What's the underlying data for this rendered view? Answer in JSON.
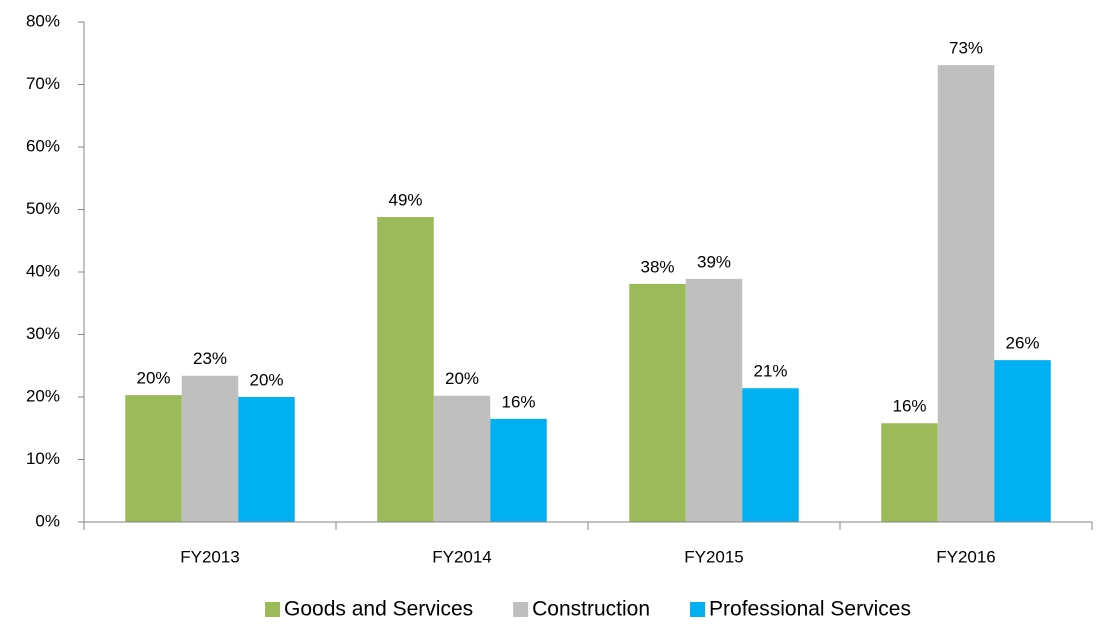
{
  "chart_data": {
    "type": "bar",
    "categories": [
      "FY2013",
      "FY2014",
      "FY2015",
      "FY2016"
    ],
    "series": [
      {
        "name": "Goods and Services",
        "color": "#9bbb59",
        "values": [
          20.3,
          48.8,
          38.1,
          15.8
        ],
        "value_labels": [
          "20%",
          "49%",
          "38%",
          "16%"
        ]
      },
      {
        "name": "Construction",
        "color": "#bfbfbf",
        "values": [
          23.4,
          20.2,
          38.9,
          73.1
        ],
        "value_labels": [
          "23%",
          "20%",
          "39%",
          "73%"
        ]
      },
      {
        "name": "Professional Services",
        "color": "#00b0f0",
        "values": [
          20.0,
          16.5,
          21.4,
          25.9
        ],
        "value_labels": [
          "20%",
          "16%",
          "21%",
          "26%"
        ]
      }
    ],
    "ylim": [
      0,
      80
    ],
    "yticks": [
      {
        "value": 0,
        "label": "0%"
      },
      {
        "value": 10,
        "label": "10%"
      },
      {
        "value": 20,
        "label": "20%"
      },
      {
        "value": 30,
        "label": "30%"
      },
      {
        "value": 40,
        "label": "40%"
      },
      {
        "value": 50,
        "label": "50%"
      },
      {
        "value": 60,
        "label": "60%"
      },
      {
        "value": 70,
        "label": "70%"
      },
      {
        "value": 80,
        "label": "80%"
      }
    ],
    "grid": false,
    "legend": "bottom"
  }
}
